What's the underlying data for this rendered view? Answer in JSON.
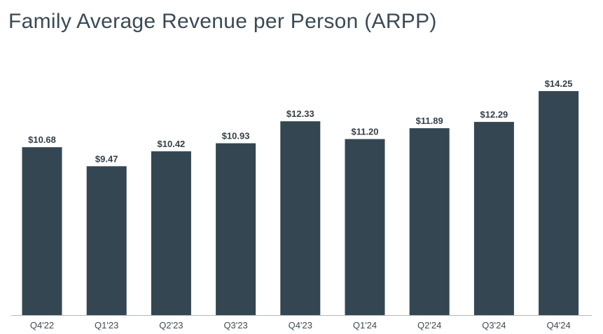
{
  "chart_data": {
    "type": "bar",
    "title": "Family Average Revenue per Person (ARPP)",
    "xlabel": "",
    "ylabel": "",
    "categories": [
      "Q4'22",
      "Q1'23",
      "Q2'23",
      "Q3'23",
      "Q4'23",
      "Q1'24",
      "Q2'24",
      "Q3'24",
      "Q4'24"
    ],
    "values": [
      10.68,
      9.47,
      10.42,
      10.93,
      12.33,
      11.2,
      11.89,
      12.29,
      14.25
    ],
    "data_labels": [
      "$10.68",
      "$9.47",
      "$10.42",
      "$10.93",
      "$12.33",
      "$11.20",
      "$11.89",
      "$12.29",
      "$14.25"
    ],
    "ylim": [
      0,
      15
    ],
    "grid": false,
    "legend": "none",
    "bar_color": "#344652",
    "axis_color": "#b5b9bc"
  }
}
